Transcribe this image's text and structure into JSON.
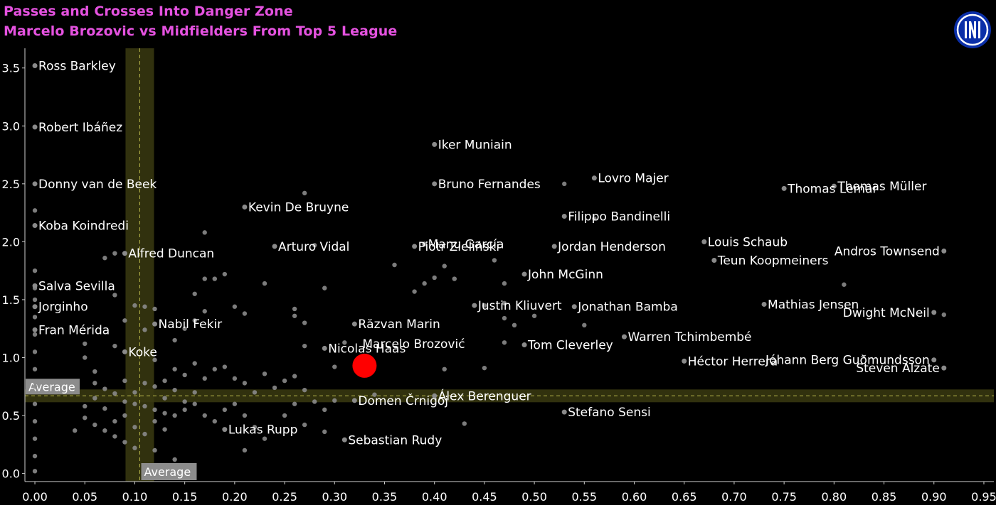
{
  "header": {
    "title": "Passes and Crosses Into Danger Zone",
    "subtitle": "Marcelo Brozovic vs Midfielders From Top 5 League"
  },
  "colors": {
    "title": "#e552e0",
    "background": "#000000",
    "point": "#8a8a8a",
    "highlight": "#ff0000",
    "band": "#3a3a10",
    "average_line": "#b8b64a",
    "text": "#ffffff"
  },
  "logo": {
    "icon": "inter-milan-crest-icon"
  },
  "chart_data": {
    "type": "scatter",
    "title": "Passes and Crosses Into Danger Zone",
    "subtitle": "Marcelo Brozovic vs Midfielders From Top 5 League",
    "xlabel": "",
    "ylabel": "",
    "xlim": [
      -0.01,
      0.96
    ],
    "ylim": [
      -0.07,
      3.67
    ],
    "x_ticks": [
      "0.00",
      "0.05",
      "0.10",
      "0.15",
      "0.20",
      "0.25",
      "0.30",
      "0.35",
      "0.40",
      "0.45",
      "0.50",
      "0.55",
      "0.60",
      "0.65",
      "0.70",
      "0.75",
      "0.80",
      "0.85",
      "0.90",
      "0.95"
    ],
    "y_ticks": [
      "0.0",
      "0.5",
      "1.0",
      "1.5",
      "2.0",
      "2.5",
      "3.0",
      "3.5"
    ],
    "grid": false,
    "average": {
      "x": 0.105,
      "y": 0.67,
      "x_label": "Average",
      "y_label": "Average"
    },
    "highlight": {
      "name": "Marcelo Brozović",
      "x": 0.33,
      "y": 0.93
    },
    "labeled_points": [
      {
        "name": "Ross Barkley",
        "x": 0.0,
        "y": 3.52
      },
      {
        "name": "Robert Ibáñez",
        "x": 0.0,
        "y": 2.99
      },
      {
        "name": "Donny van de Beek",
        "x": 0.0,
        "y": 2.5
      },
      {
        "name": "Koba Koindredi",
        "x": 0.0,
        "y": 2.14
      },
      {
        "name": "Salva Sevilla",
        "x": 0.0,
        "y": 1.62
      },
      {
        "name": "Jorginho",
        "x": 0.0,
        "y": 1.44
      },
      {
        "name": "Fran Mérida",
        "x": 0.0,
        "y": 1.24
      },
      {
        "name": "Koke",
        "x": 0.09,
        "y": 1.05
      },
      {
        "name": "Alfred Duncan",
        "x": 0.09,
        "y": 1.9
      },
      {
        "name": "Nabil Fekir",
        "x": 0.12,
        "y": 1.29
      },
      {
        "name": "Arturo Vidal",
        "x": 0.24,
        "y": 1.96
      },
      {
        "name": "Kevin De Bruyne",
        "x": 0.21,
        "y": 2.3
      },
      {
        "name": "Nicolas Haas",
        "x": 0.29,
        "y": 1.08
      },
      {
        "name": "Piotr Zieliński",
        "x": 0.38,
        "y": 1.96
      },
      {
        "name": "Iker Muniain",
        "x": 0.4,
        "y": 2.84
      },
      {
        "name": "Bruno Fernandes",
        "x": 0.4,
        "y": 2.5
      },
      {
        "name": "Manu García",
        "x": 0.39,
        "y": 1.98
      },
      {
        "name": "Justin Kliuvert",
        "x": 0.44,
        "y": 1.45
      },
      {
        "name": "Răzvan Marin",
        "x": 0.32,
        "y": 1.29
      },
      {
        "name": "Álex Berenguer",
        "x": 0.4,
        "y": 0.67
      },
      {
        "name": "Domen Črnigoj",
        "x": 0.32,
        "y": 0.63
      },
      {
        "name": "Sebastian Rudy",
        "x": 0.31,
        "y": 0.29
      },
      {
        "name": "Lukas Rupp",
        "x": 0.19,
        "y": 0.38
      },
      {
        "name": "Lovro Majer",
        "x": 0.56,
        "y": 2.55
      },
      {
        "name": "Filippo Bandinelli",
        "x": 0.53,
        "y": 2.22
      },
      {
        "name": "Jordan Henderson",
        "x": 0.52,
        "y": 1.96
      },
      {
        "name": "John McGinn",
        "x": 0.49,
        "y": 1.72
      },
      {
        "name": "Jonathan Bamba",
        "x": 0.54,
        "y": 1.44
      },
      {
        "name": "Tom Cleverley",
        "x": 0.49,
        "y": 1.11
      },
      {
        "name": "Warren Tchimbembé",
        "x": 0.59,
        "y": 1.18
      },
      {
        "name": "Stefano Sensi",
        "x": 0.53,
        "y": 0.53
      },
      {
        "name": "Héctor Herrera",
        "x": 0.65,
        "y": 0.97
      },
      {
        "name": "Louis Schaub",
        "x": 0.67,
        "y": 2.0
      },
      {
        "name": "Teun Koopmeiners",
        "x": 0.68,
        "y": 1.84
      },
      {
        "name": "Thomas Lemar",
        "x": 0.75,
        "y": 2.46
      },
      {
        "name": "Thomas Müller",
        "x": 0.8,
        "y": 2.48
      },
      {
        "name": "Mathias Jensen",
        "x": 0.73,
        "y": 1.46
      },
      {
        "name": "Andros Townsend",
        "x": 0.91,
        "y": 1.92
      },
      {
        "name": "Dwight McNeil",
        "x": 0.9,
        "y": 1.39
      },
      {
        "name": "Jóhann Berg Guðmundsson",
        "x": 0.9,
        "y": 0.98
      },
      {
        "name": "Steven Alzate",
        "x": 0.91,
        "y": 0.91
      }
    ],
    "other_points": [
      [
        0.0,
        2.27
      ],
      [
        0.0,
        1.75
      ],
      [
        0.0,
        1.6
      ],
      [
        0.0,
        1.5
      ],
      [
        0.0,
        1.35
      ],
      [
        0.0,
        1.2
      ],
      [
        0.0,
        1.05
      ],
      [
        0.0,
        0.9
      ],
      [
        0.0,
        0.75
      ],
      [
        0.0,
        0.6
      ],
      [
        0.0,
        0.45
      ],
      [
        0.0,
        0.3
      ],
      [
        0.0,
        0.15
      ],
      [
        0.0,
        0.02
      ],
      [
        0.07,
        1.86
      ],
      [
        0.08,
        1.9
      ],
      [
        0.08,
        1.54
      ],
      [
        0.08,
        1.1
      ],
      [
        0.09,
        1.32
      ],
      [
        0.1,
        1.45
      ],
      [
        0.11,
        1.44
      ],
      [
        0.12,
        1.42
      ],
      [
        0.11,
        1.24
      ],
      [
        0.05,
        1.12
      ],
      [
        0.05,
        1.0
      ],
      [
        0.06,
        0.88
      ],
      [
        0.06,
        0.78
      ],
      [
        0.07,
        0.73
      ],
      [
        0.08,
        0.69
      ],
      [
        0.09,
        0.62
      ],
      [
        0.1,
        0.6
      ],
      [
        0.11,
        0.58
      ],
      [
        0.12,
        0.55
      ],
      [
        0.13,
        0.52
      ],
      [
        0.05,
        0.58
      ],
      [
        0.05,
        0.48
      ],
      [
        0.06,
        0.42
      ],
      [
        0.07,
        0.37
      ],
      [
        0.08,
        0.32
      ],
      [
        0.09,
        0.27
      ],
      [
        0.1,
        0.22
      ],
      [
        0.12,
        0.2
      ],
      [
        0.14,
        0.12
      ],
      [
        0.04,
        0.37
      ],
      [
        0.06,
        0.65
      ],
      [
        0.07,
        0.56
      ],
      [
        0.08,
        0.45
      ],
      [
        0.09,
        0.5
      ],
      [
        0.1,
        0.4
      ],
      [
        0.11,
        0.34
      ],
      [
        0.12,
        0.45
      ],
      [
        0.13,
        0.38
      ],
      [
        0.14,
        0.5
      ],
      [
        0.15,
        0.55
      ],
      [
        0.16,
        0.6
      ],
      [
        0.17,
        0.5
      ],
      [
        0.18,
        0.45
      ],
      [
        0.19,
        0.55
      ],
      [
        0.2,
        0.6
      ],
      [
        0.21,
        0.5
      ],
      [
        0.22,
        0.4
      ],
      [
        0.23,
        0.3
      ],
      [
        0.21,
        0.2
      ],
      [
        0.13,
        0.8
      ],
      [
        0.14,
        0.9
      ],
      [
        0.15,
        0.85
      ],
      [
        0.16,
        0.95
      ],
      [
        0.17,
        0.82
      ],
      [
        0.18,
        0.9
      ],
      [
        0.19,
        0.92
      ],
      [
        0.2,
        0.82
      ],
      [
        0.21,
        0.78
      ],
      [
        0.22,
        0.7
      ],
      [
        0.23,
        0.86
      ],
      [
        0.24,
        0.74
      ],
      [
        0.25,
        0.8
      ],
      [
        0.26,
        0.84
      ],
      [
        0.27,
        0.72
      ],
      [
        0.28,
        0.62
      ],
      [
        0.29,
        0.55
      ],
      [
        0.25,
        0.5
      ],
      [
        0.26,
        0.6
      ],
      [
        0.27,
        0.42
      ],
      [
        0.14,
        1.15
      ],
      [
        0.15,
        1.25
      ],
      [
        0.16,
        1.32
      ],
      [
        0.17,
        1.4
      ],
      [
        0.16,
        1.55
      ],
      [
        0.17,
        1.68
      ],
      [
        0.18,
        1.68
      ],
      [
        0.19,
        1.72
      ],
      [
        0.2,
        1.44
      ],
      [
        0.21,
        1.38
      ],
      [
        0.17,
        2.08
      ],
      [
        0.27,
        2.42
      ],
      [
        0.28,
        1.97
      ],
      [
        0.23,
        1.64
      ],
      [
        0.26,
        1.42
      ],
      [
        0.26,
        1.36
      ],
      [
        0.27,
        1.3
      ],
      [
        0.27,
        1.1
      ],
      [
        0.29,
        1.6
      ],
      [
        0.31,
        1.13
      ],
      [
        0.3,
        0.92
      ],
      [
        0.34,
        0.68
      ],
      [
        0.3,
        0.63
      ],
      [
        0.29,
        0.36
      ],
      [
        0.36,
        1.8
      ],
      [
        0.38,
        1.57
      ],
      [
        0.39,
        1.64
      ],
      [
        0.4,
        1.69
      ],
      [
        0.41,
        1.79
      ],
      [
        0.42,
        1.68
      ],
      [
        0.45,
        1.45
      ],
      [
        0.46,
        1.84
      ],
      [
        0.47,
        1.64
      ],
      [
        0.47,
        1.47
      ],
      [
        0.47,
        1.34
      ],
      [
        0.48,
        1.28
      ],
      [
        0.47,
        1.13
      ],
      [
        0.41,
        0.9
      ],
      [
        0.45,
        0.91
      ],
      [
        0.43,
        0.43
      ],
      [
        0.5,
        1.36
      ],
      [
        0.53,
        2.5
      ],
      [
        0.56,
        2.2
      ],
      [
        0.55,
        1.28
      ],
      [
        0.81,
        1.63
      ],
      [
        0.91,
        1.37
      ],
      [
        0.12,
        0.98
      ],
      [
        0.12,
        0.75
      ],
      [
        0.13,
        0.65
      ],
      [
        0.14,
        0.72
      ],
      [
        0.15,
        0.62
      ],
      [
        0.16,
        0.7
      ],
      [
        0.11,
        0.78
      ],
      [
        0.1,
        0.7
      ],
      [
        0.09,
        0.8
      ]
    ]
  }
}
